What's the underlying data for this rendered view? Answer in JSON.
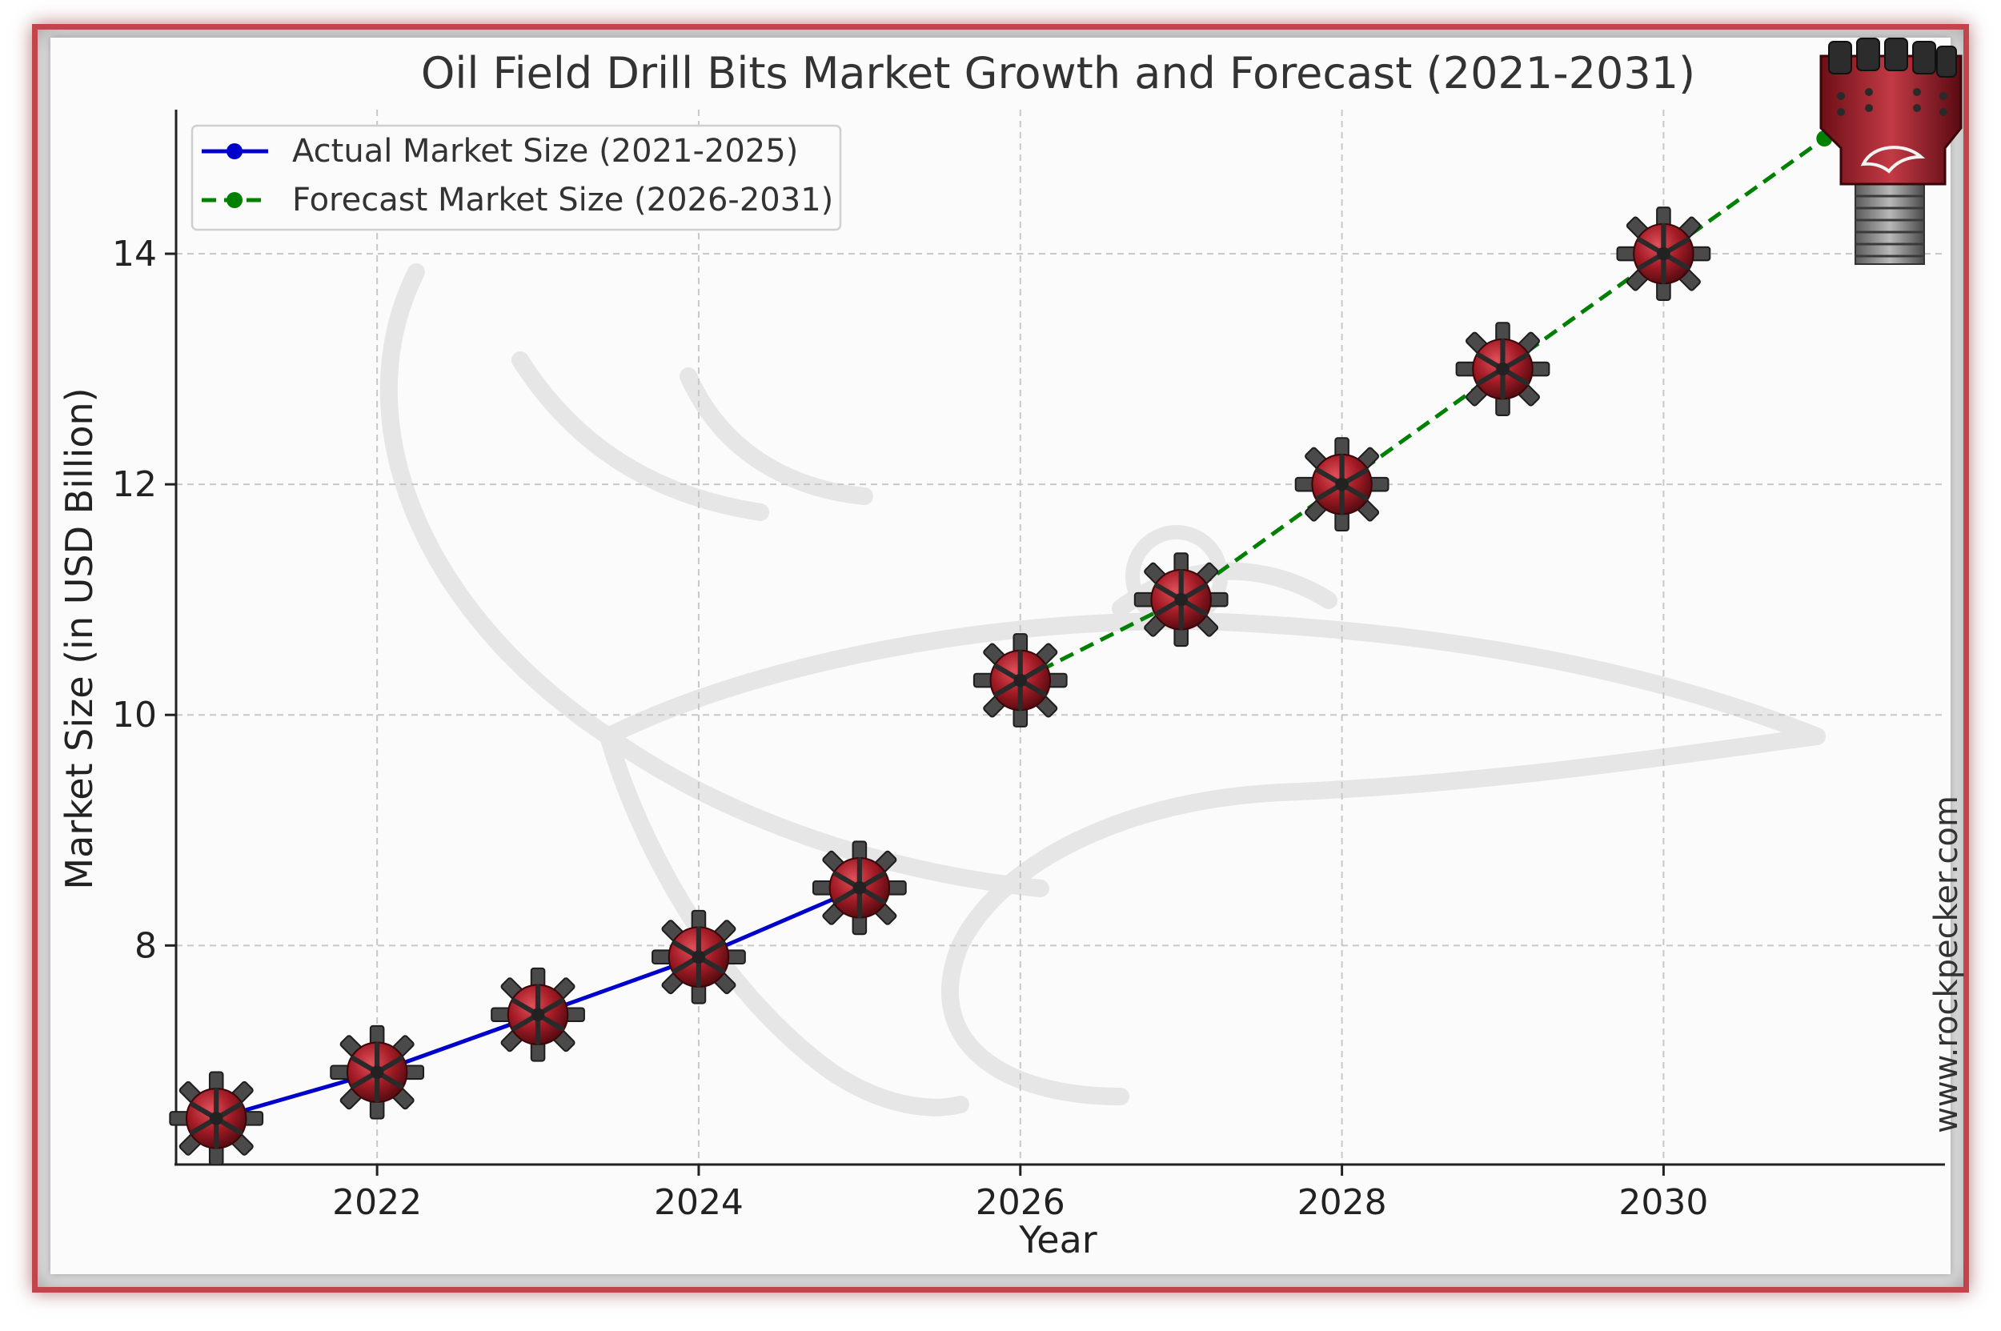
{
  "chart_data": {
    "type": "line",
    "title": "Oil Field Drill Bits Market Growth and Forecast (2021-2031)",
    "xlabel": "Year",
    "ylabel": "Market Size (in USD Billion)",
    "xlim": [
      2020.75,
      2031.75
    ],
    "ylim": [
      6.1,
      15.25
    ],
    "xticks": [
      2022,
      2024,
      2026,
      2028,
      2030
    ],
    "yticks": [
      8,
      10,
      12,
      14
    ],
    "grid": true,
    "legend_position": "top-left",
    "series": [
      {
        "name": "Actual Market Size (2021-2025)",
        "color": "#0000cc",
        "style": "solid",
        "x": [
          2021,
          2022,
          2023,
          2024,
          2025
        ],
        "y": [
          6.5,
          6.9,
          7.4,
          7.9,
          8.5
        ]
      },
      {
        "name": "Forecast Market Size (2026-2031)",
        "color": "#008000",
        "style": "dashed",
        "x": [
          2026,
          2027,
          2028,
          2029,
          2030,
          2031
        ],
        "y": [
          10.3,
          11.0,
          12.0,
          13.0,
          14.0,
          15.0
        ]
      }
    ]
  },
  "watermark_text": "www.rockpecker.com"
}
